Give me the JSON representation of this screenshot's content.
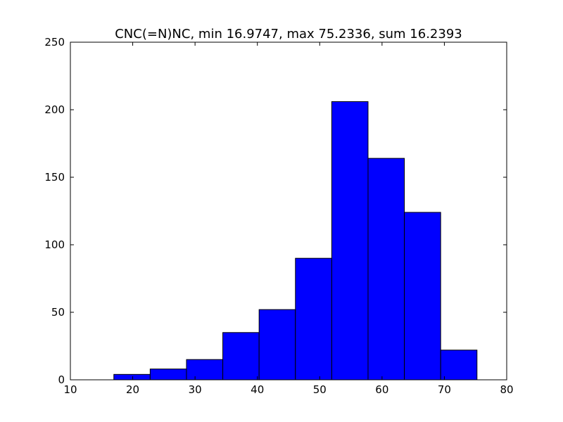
{
  "chart_data": {
    "type": "bar",
    "title": "CNC(=N)NC, min 16.9747, max 75.2336, sum 16.2393",
    "xlabel": "",
    "ylabel": "",
    "xlim": [
      10,
      80
    ],
    "ylim": [
      0,
      250
    ],
    "x_ticks": [
      10,
      20,
      30,
      40,
      50,
      60,
      70,
      80
    ],
    "y_ticks": [
      0,
      50,
      100,
      150,
      200,
      250
    ],
    "grid": false,
    "bin_edges": [
      16.9747,
      22.8006,
      28.6265,
      34.4524,
      40.2783,
      46.1042,
      51.9301,
      57.756,
      63.5819,
      69.4077,
      75.2336
    ],
    "values": [
      4,
      8,
      15,
      35,
      52,
      90,
      206,
      164,
      124,
      22
    ],
    "bar_color": "#0000ff",
    "edge_color": "#000000"
  }
}
